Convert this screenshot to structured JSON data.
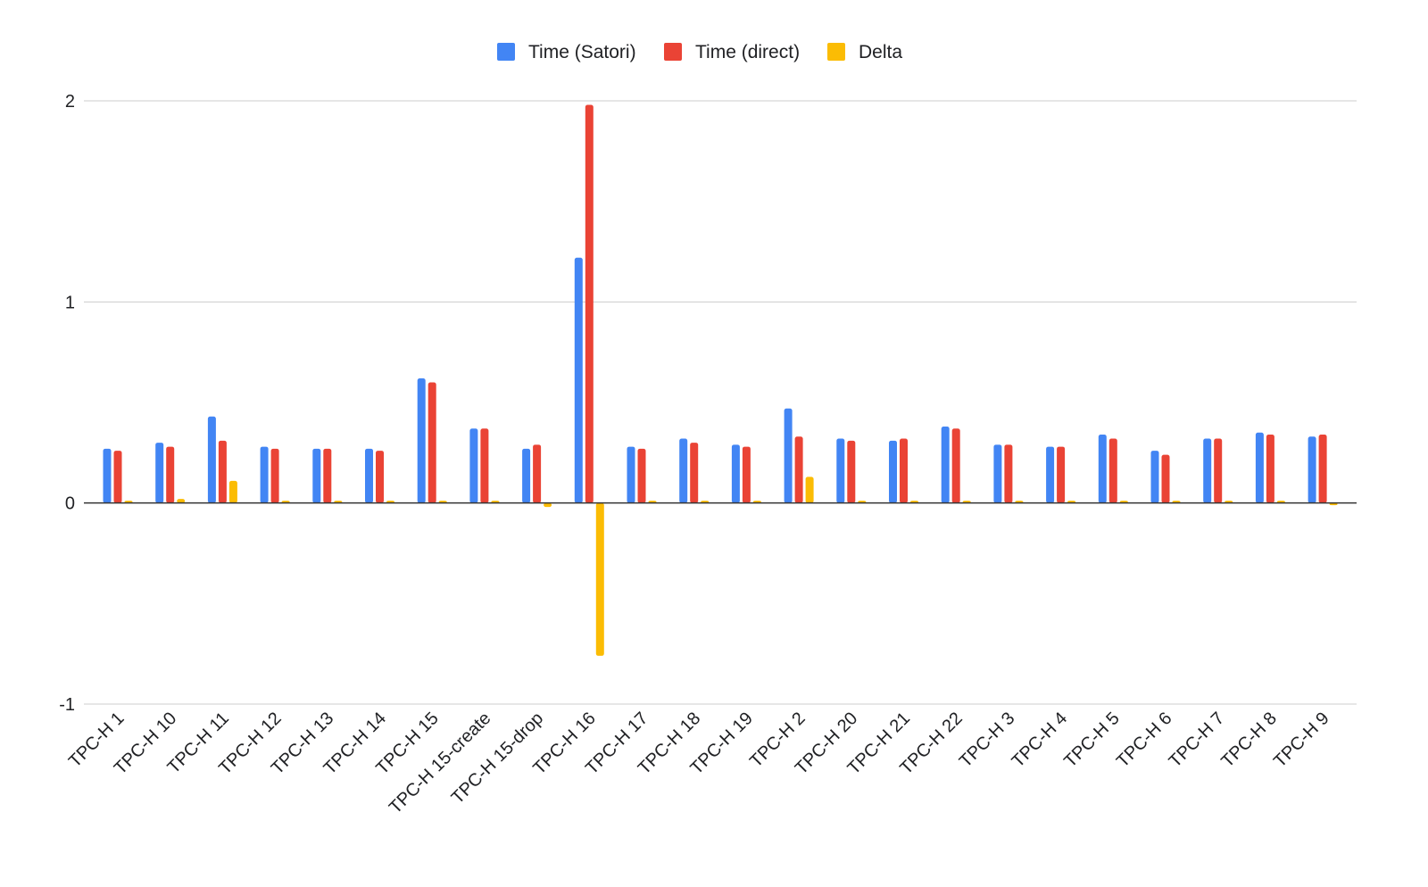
{
  "chart_data": {
    "type": "bar",
    "title": "",
    "xlabel": "",
    "ylabel": "",
    "ylim": [
      -1,
      2
    ],
    "yticks": [
      2,
      1,
      0,
      -1
    ],
    "grid": true,
    "legend_position": "top-center",
    "categories": [
      "TPC-H 1",
      "TPC-H 10",
      "TPC-H 11",
      "TPC-H 12",
      "TPC-H 13",
      "TPC-H 14",
      "TPC-H 15",
      "TPC-H 15-create",
      "TPC-H 15-drop",
      "TPC-H 16",
      "TPC-H 17",
      "TPC-H 18",
      "TPC-H 19",
      "TPC-H 2",
      "TPC-H 20",
      "TPC-H 21",
      "TPC-H 22",
      "TPC-H 3",
      "TPC-H 4",
      "TPC-H 5",
      "TPC-H 6",
      "TPC-H 7",
      "TPC-H 8",
      "TPC-H 9"
    ],
    "series": [
      {
        "name": "Time (Satori)",
        "color": "#4285f4",
        "values": [
          0.27,
          0.3,
          0.43,
          0.28,
          0.27,
          0.27,
          0.62,
          0.37,
          0.27,
          1.22,
          0.28,
          0.32,
          0.29,
          0.47,
          0.32,
          0.31,
          0.38,
          0.29,
          0.28,
          0.34,
          0.26,
          0.32,
          0.35,
          0.33
        ]
      },
      {
        "name": "Time (direct)",
        "color": "#ea4335",
        "values": [
          0.26,
          0.28,
          0.31,
          0.27,
          0.27,
          0.26,
          0.6,
          0.37,
          0.29,
          1.98,
          0.27,
          0.3,
          0.28,
          0.33,
          0.31,
          0.32,
          0.37,
          0.29,
          0.28,
          0.32,
          0.24,
          0.32,
          0.34,
          0.34
        ]
      },
      {
        "name": "Delta",
        "color": "#fbbc04",
        "values": [
          0.01,
          0.02,
          0.11,
          0.01,
          0.0,
          0.01,
          0.01,
          0.0,
          -0.02,
          -0.76,
          0.01,
          0.01,
          0.01,
          0.13,
          0.01,
          0.0,
          0.01,
          0.0,
          0.0,
          0.01,
          0.01,
          0.0,
          0.01,
          -0.01
        ]
      }
    ]
  }
}
